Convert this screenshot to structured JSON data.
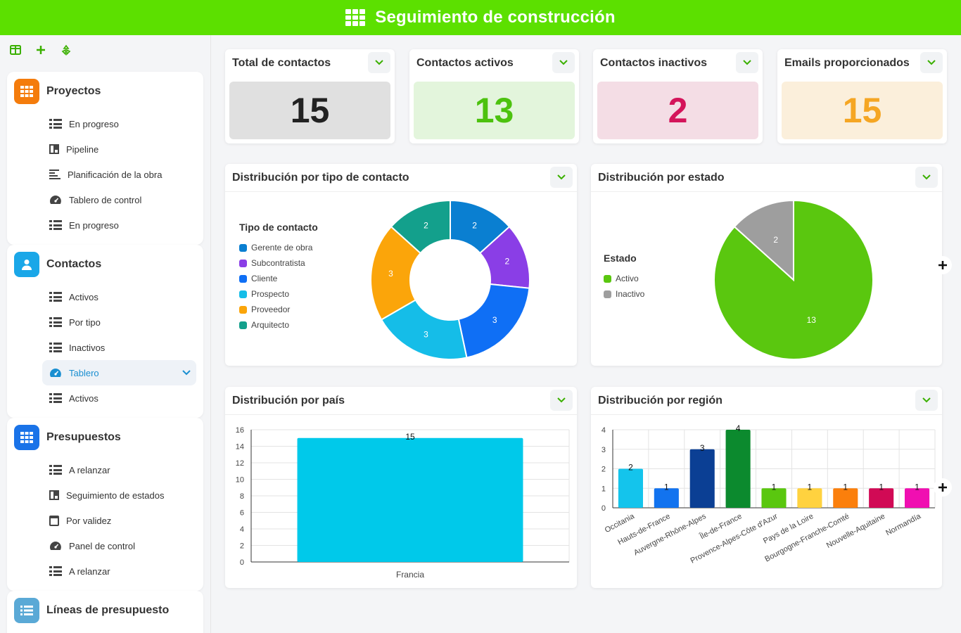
{
  "header": {
    "title": "Seguimiento de construcción"
  },
  "sidebar": {
    "sections": [
      {
        "title": "Proyectos",
        "color": "#f47c0c",
        "icon": "grid-icon",
        "items": [
          {
            "label": "En progreso",
            "icon": "list-icon"
          },
          {
            "label": "Pipeline",
            "icon": "kanban-icon"
          },
          {
            "label": "Planificación de la obra",
            "icon": "gantt-icon"
          },
          {
            "label": "Tablero de control",
            "icon": "gauge-icon"
          },
          {
            "label": "En progreso",
            "icon": "list-icon"
          }
        ]
      },
      {
        "title": "Contactos",
        "color": "#1aa7e8",
        "icon": "user-icon",
        "items": [
          {
            "label": "Activos",
            "icon": "list-icon"
          },
          {
            "label": "Por tipo",
            "icon": "list-icon"
          },
          {
            "label": "Inactivos",
            "icon": "list-icon"
          },
          {
            "label": "Tablero",
            "icon": "gauge-icon",
            "active": true
          },
          {
            "label": "Activos",
            "icon": "list-icon"
          }
        ]
      },
      {
        "title": "Presupuestos",
        "color": "#1a73e8",
        "icon": "grid-icon",
        "items": [
          {
            "label": "A relanzar",
            "icon": "list-icon"
          },
          {
            "label": "Seguimiento de estados",
            "icon": "kanban-icon"
          },
          {
            "label": "Por validez",
            "icon": "calendar-icon"
          },
          {
            "label": "Panel de control",
            "icon": "gauge-icon"
          },
          {
            "label": "A relanzar",
            "icon": "list-icon"
          }
        ]
      },
      {
        "title": "Líneas de presupuesto",
        "color": "#5aa9d6",
        "icon": "list-icon",
        "items": []
      }
    ]
  },
  "kpis": [
    {
      "title": "Total de contactos",
      "value": "15",
      "bg": "#e0e0e0",
      "fg": "#222222"
    },
    {
      "title": "Contactos activos",
      "value": "13",
      "bg": "#e3f5dc",
      "fg": "#4cc20e"
    },
    {
      "title": "Contactos inactivos",
      "value": "2",
      "bg": "#f4dde5",
      "fg": "#d4145a"
    },
    {
      "title": "Emails proporcionados",
      "value": "15",
      "bg": "#fbefdb",
      "fg": "#f5a623"
    }
  ],
  "panels": {
    "tipo": "Distribución por tipo de contacto",
    "estado": "Distribución por estado",
    "pais": "Distribución por país",
    "region": "Distribución por región"
  },
  "chart_data": [
    {
      "type": "pie",
      "variant": "donut",
      "legend_title": "Tipo de contacto",
      "categories": [
        "Gerente de obra",
        "Subcontratista",
        "Cliente",
        "Prospecto",
        "Proveedor",
        "Arquitecto"
      ],
      "values": [
        2,
        2,
        3,
        3,
        3,
        2
      ],
      "colors": [
        "#0a7fd1",
        "#8a3ee6",
        "#0f6ff5",
        "#15bde8",
        "#fba50a",
        "#13a08c"
      ],
      "legend_placement": "left"
    },
    {
      "type": "pie",
      "legend_title": "Estado",
      "categories": [
        "Activo",
        "Inactivo"
      ],
      "values": [
        13,
        2
      ],
      "colors": [
        "#5ac70f",
        "#9e9e9e"
      ],
      "legend_placement": "left"
    },
    {
      "type": "bar",
      "categories": [
        "Francia"
      ],
      "values": [
        15
      ],
      "colors": [
        "#00c9ea"
      ],
      "ylim": [
        0,
        16
      ],
      "yticks": [
        0,
        2,
        4,
        6,
        8,
        10,
        12,
        14,
        16
      ],
      "grid": true
    },
    {
      "type": "bar",
      "categories": [
        "Occitania",
        "Hauts-de-France",
        "Auvergne-Rhône-Alpes",
        "Île-de-France",
        "Provence-Alpes-Côte d'Azur",
        "Pays de la Loire",
        "Bourgogne-Franche-Comté",
        "Nouvelle-Aquitaine",
        "Normandía"
      ],
      "values": [
        2,
        1,
        3,
        4,
        1,
        1,
        1,
        1,
        1
      ],
      "colors": [
        "#14c4ec",
        "#1273ef",
        "#0b3f94",
        "#0c8a2e",
        "#5ac70f",
        "#ffd23f",
        "#fb7f0c",
        "#d10a55",
        "#f00fb1"
      ],
      "ylim": [
        0,
        4
      ],
      "yticks": [
        0,
        1,
        2,
        3,
        4
      ],
      "grid": true
    }
  ]
}
